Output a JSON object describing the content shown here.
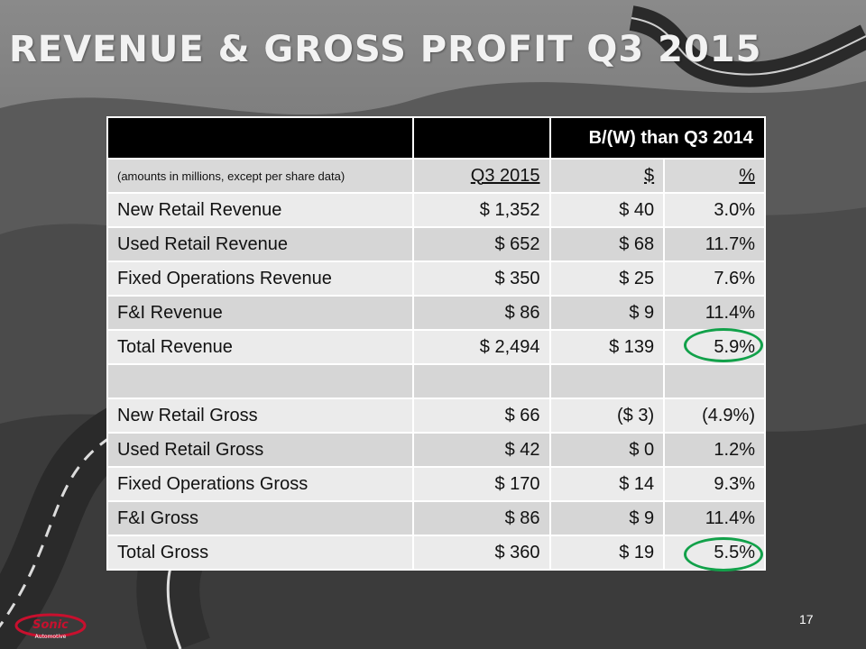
{
  "slide": {
    "title": "REVENUE & GROSS PROFIT Q3 2015",
    "page_number": "17",
    "logo_text": "Sonic",
    "logo_subtext": "Automotive"
  },
  "table": {
    "group_header": "B/(W) than Q3 2014",
    "note": "(amounts in millions, except per share data)",
    "columns": [
      "Q3 2015",
      "$",
      "%"
    ],
    "rows": [
      {
        "label": "New Retail Revenue",
        "q3": "$ 1,352",
        "delta": "$ 40",
        "pct": "3.0%"
      },
      {
        "label": "Used Retail Revenue",
        "q3": "$ 652",
        "delta": "$ 68",
        "pct": "11.7%"
      },
      {
        "label": "Fixed Operations Revenue",
        "q3": "$ 350",
        "delta": "$ 25",
        "pct": "7.6%"
      },
      {
        "label": "F&I Revenue",
        "q3": "$ 86",
        "delta": "$ 9",
        "pct": "11.4%"
      },
      {
        "label": "Total Revenue",
        "q3": "$ 2,494",
        "delta": "$ 139",
        "pct": "5.9%"
      },
      {
        "label": "",
        "q3": "",
        "delta": "",
        "pct": ""
      },
      {
        "label": "New Retail Gross",
        "q3": "$ 66",
        "delta": "($ 3)",
        "pct": "(4.9%)"
      },
      {
        "label": "Used Retail Gross",
        "q3": "$ 42",
        "delta": "$ 0",
        "pct": "1.2%"
      },
      {
        "label": "Fixed Operations Gross",
        "q3": "$ 170",
        "delta": "$ 14",
        "pct": "9.3%"
      },
      {
        "label": "F&I Gross",
        "q3": "$ 86",
        "delta": "$ 9",
        "pct": "11.4%"
      },
      {
        "label": "Total Gross",
        "q3": "$ 360",
        "delta": "$ 19",
        "pct": "5.5%"
      }
    ]
  },
  "colors": {
    "highlight_circle": "#12a14a",
    "header_bg": "#000000",
    "row_light": "#ebebeb",
    "row_dark": "#d6d6d6"
  }
}
